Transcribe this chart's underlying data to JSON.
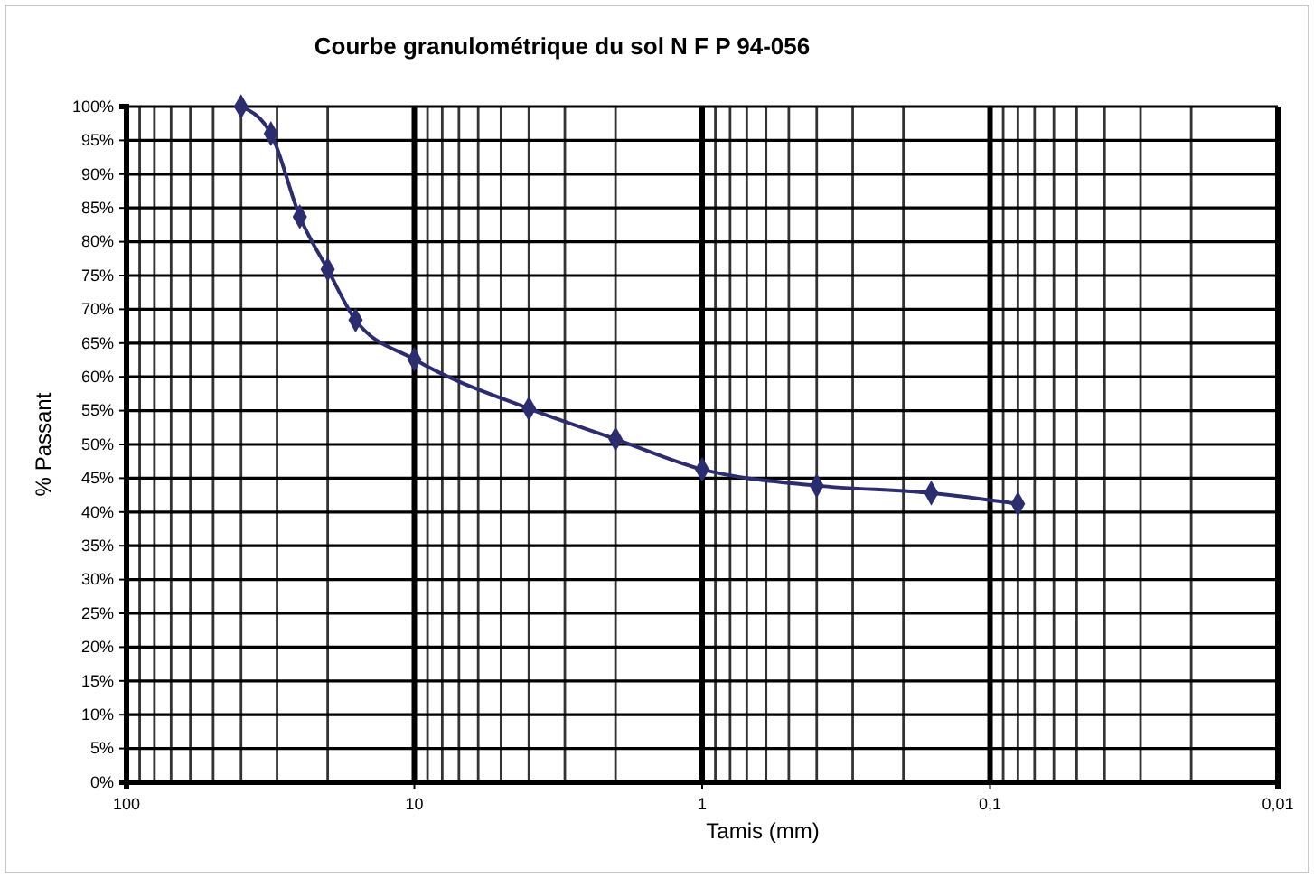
{
  "chart_data": {
    "type": "line",
    "title": "Courbe granulométrique du sol  N F P 94-056",
    "xlabel": "Tamis (mm)",
    "ylabel": "% Passant",
    "x": [
      40,
      31.5,
      25,
      20,
      16,
      10,
      4,
      2,
      1,
      0.4,
      0.16,
      0.08
    ],
    "series": [
      {
        "color": "#2b2d6e",
        "values": [
          100,
          96,
          83.7,
          75.9,
          68.4,
          62.6,
          55.3,
          50.8,
          46.3,
          43.9,
          42.8,
          41.2
        ]
      }
    ],
    "xlim": [
      100,
      0.01
    ],
    "log": "x",
    "xticks": [
      100,
      10,
      1,
      {
        "value": 0.1,
        "label": "0,1"
      },
      {
        "value": 0.01,
        "label": "0,01"
      }
    ],
    "ylim": [
      0,
      100
    ],
    "yticks": [
      {
        "value": 0,
        "label": "0%"
      },
      {
        "value": 5,
        "label": "5%"
      },
      {
        "value": 10,
        "label": "10%"
      },
      {
        "value": 15,
        "label": "15%"
      },
      {
        "value": 20,
        "label": "20%"
      },
      {
        "value": 25,
        "label": "25%"
      },
      {
        "value": 30,
        "label": "30%"
      },
      {
        "value": 35,
        "label": "35%"
      },
      {
        "value": 40,
        "label": "40%"
      },
      {
        "value": 45,
        "label": "45%"
      },
      {
        "value": 50,
        "label": "50%"
      },
      {
        "value": 55,
        "label": "55%"
      },
      {
        "value": 60,
        "label": "60%"
      },
      {
        "value": 65,
        "label": "65%"
      },
      {
        "value": 70,
        "label": "70%"
      },
      {
        "value": 75,
        "label": "75%"
      },
      {
        "value": 80,
        "label": "80%"
      },
      {
        "value": 85,
        "label": "85%"
      },
      {
        "value": 90,
        "label": "90%"
      },
      {
        "value": 95,
        "label": "95%"
      },
      {
        "value": 100,
        "label": "100%"
      }
    ],
    "grid": true,
    "marker": "diamond",
    "line_style": "solid"
  }
}
